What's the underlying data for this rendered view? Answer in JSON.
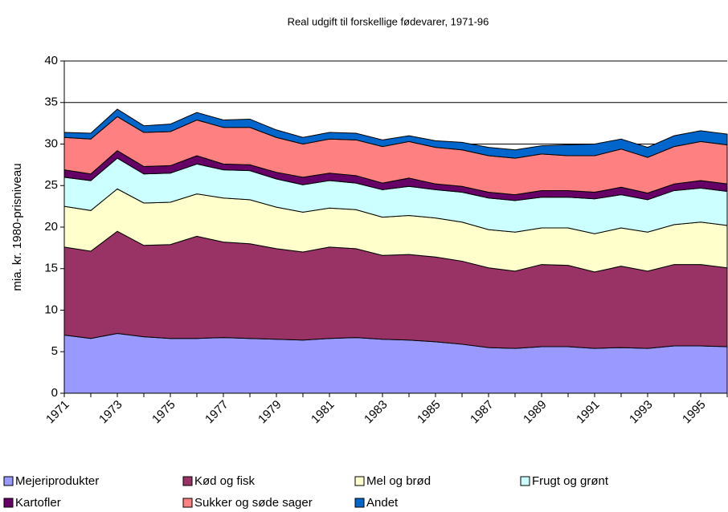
{
  "chart_data": {
    "type": "stacked_area",
    "title": "Real udgift til forskellige fødevarer, 1971-96",
    "y_label": "mia. kr. 1980-prisniveau",
    "categories": [
      "1971",
      null,
      "1973",
      null,
      "1975",
      null,
      "1977",
      null,
      "1979",
      null,
      "1981",
      null,
      "1983",
      null,
      "1985",
      null,
      "1987",
      null,
      "1989",
      null,
      "1991",
      null,
      "1993",
      null,
      "1995",
      null
    ],
    "series": [
      {
        "name": "Mejeriprodukter",
        "color": "#9999ff",
        "values": [
          7.0,
          6.6,
          7.2,
          6.8,
          6.6,
          6.6,
          6.7,
          6.6,
          6.5,
          6.4,
          6.6,
          6.7,
          6.5,
          6.4,
          6.2,
          5.9,
          5.5,
          5.4,
          5.6,
          5.6,
          5.4,
          5.5,
          5.4,
          5.7,
          5.7,
          5.6
        ]
      },
      {
        "name": "Kød og fisk",
        "color": "#993366",
        "values": [
          10.6,
          10.5,
          12.3,
          11.0,
          11.3,
          12.3,
          11.5,
          11.4,
          10.9,
          10.6,
          11.0,
          10.7,
          10.1,
          10.3,
          10.2,
          10.0,
          9.6,
          9.3,
          9.9,
          9.8,
          9.2,
          9.8,
          9.3,
          9.8,
          9.8,
          9.5
        ]
      },
      {
        "name": "Mel og brød",
        "color": "#ffffcc",
        "values": [
          4.9,
          4.9,
          5.1,
          5.1,
          5.1,
          5.1,
          5.3,
          5.3,
          5.0,
          4.8,
          4.7,
          4.7,
          4.6,
          4.7,
          4.7,
          4.7,
          4.6,
          4.7,
          4.4,
          4.5,
          4.6,
          4.6,
          4.7,
          4.8,
          5.1,
          5.1
        ]
      },
      {
        "name": "Frugt og grønt",
        "color": "#ccffff",
        "values": [
          3.5,
          3.6,
          3.7,
          3.5,
          3.5,
          3.6,
          3.4,
          3.5,
          3.4,
          3.3,
          3.3,
          3.2,
          3.3,
          3.5,
          3.4,
          3.6,
          3.8,
          3.8,
          3.7,
          3.7,
          4.2,
          4.0,
          3.9,
          4.1,
          4.1,
          4.1
        ]
      },
      {
        "name": "Kartofler",
        "color": "#660066",
        "values": [
          0.9,
          0.8,
          0.9,
          0.9,
          0.9,
          1.0,
          0.7,
          0.7,
          0.8,
          0.9,
          0.9,
          0.9,
          0.8,
          1.0,
          0.7,
          0.7,
          0.7,
          0.7,
          0.8,
          0.8,
          0.8,
          0.9,
          0.8,
          0.8,
          0.9,
          0.9
        ]
      },
      {
        "name": "Sukker og søde sager",
        "color": "#ff8080",
        "values": [
          3.9,
          4.2,
          4.1,
          4.1,
          4.1,
          4.3,
          4.4,
          4.5,
          4.2,
          4.0,
          4.1,
          4.3,
          4.4,
          4.4,
          4.4,
          4.4,
          4.4,
          4.4,
          4.4,
          4.2,
          4.4,
          4.6,
          4.3,
          4.5,
          4.7,
          4.7
        ]
      },
      {
        "name": "Andet",
        "color": "#0066cc",
        "values": [
          0.6,
          0.7,
          0.9,
          0.8,
          0.9,
          0.9,
          0.9,
          1.0,
          0.9,
          0.8,
          0.8,
          0.8,
          0.8,
          0.7,
          0.8,
          0.9,
          1.0,
          1.0,
          1.0,
          1.3,
          1.4,
          1.2,
          1.2,
          1.3,
          1.3,
          1.3
        ]
      }
    ],
    "ylim": [
      0,
      40
    ],
    "yticks": [
      0,
      5,
      10,
      15,
      20,
      25,
      30,
      35,
      40
    ],
    "grid": true
  }
}
